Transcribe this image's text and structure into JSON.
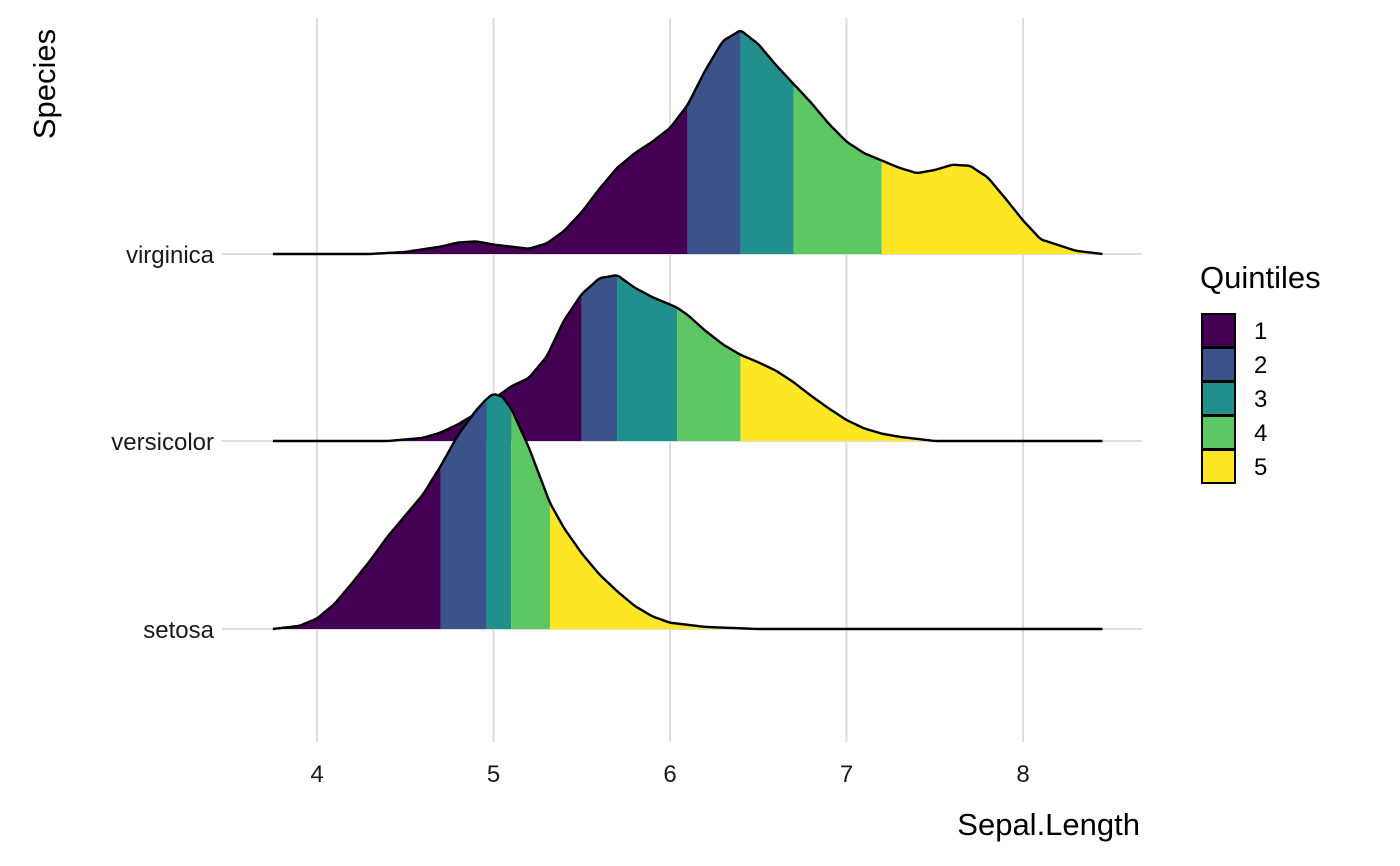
{
  "chart_data": {
    "type": "ridgeline",
    "xlabel": "Sepal.Length",
    "ylabel": "Species",
    "xlim": [
      3.75,
      8.45
    ],
    "x_ticks": [
      4,
      5,
      6,
      7,
      8
    ],
    "categories": [
      "setosa",
      "versicolor",
      "virginica"
    ],
    "grid": "on",
    "legend": {
      "title": "Quintiles",
      "position": "right",
      "items": [
        {
          "label": "1",
          "color": "#440154"
        },
        {
          "label": "2",
          "color": "#3B528B"
        },
        {
          "label": "3",
          "color": "#21908C"
        },
        {
          "label": "4",
          "color": "#5DC863"
        },
        {
          "label": "5",
          "color": "#FDE725"
        }
      ]
    },
    "series": [
      {
        "category": "setosa",
        "quintile_breaks": [
          4.7,
          4.96,
          5.1,
          5.32
        ],
        "density_x": [
          3.75,
          3.9,
          4.0,
          4.1,
          4.2,
          4.3,
          4.4,
          4.5,
          4.6,
          4.7,
          4.8,
          4.9,
          4.96,
          5.0,
          5.05,
          5.1,
          5.2,
          5.32,
          5.4,
          5.5,
          5.6,
          5.7,
          5.8,
          5.9,
          6.0,
          6.2,
          6.5,
          8.45
        ],
        "density_y": [
          0.0,
          0.03,
          0.1,
          0.24,
          0.44,
          0.65,
          0.88,
          1.08,
          1.28,
          1.55,
          1.85,
          2.08,
          2.19,
          2.24,
          2.21,
          2.1,
          1.73,
          1.2,
          0.96,
          0.72,
          0.52,
          0.36,
          0.22,
          0.12,
          0.06,
          0.02,
          0.0,
          0.0
        ]
      },
      {
        "category": "versicolor",
        "quintile_breaks": [
          5.5,
          5.7,
          6.04,
          6.4
        ],
        "density_x": [
          3.75,
          4.4,
          4.6,
          4.7,
          4.8,
          4.9,
          5.0,
          5.1,
          5.2,
          5.3,
          5.4,
          5.5,
          5.6,
          5.7,
          5.8,
          5.9,
          6.0,
          6.04,
          6.1,
          6.2,
          6.3,
          6.4,
          6.5,
          6.6,
          6.7,
          6.8,
          6.9,
          7.0,
          7.1,
          7.2,
          7.3,
          7.4,
          7.5,
          8.45
        ],
        "density_y": [
          0.0,
          0.0,
          0.03,
          0.08,
          0.16,
          0.26,
          0.4,
          0.52,
          0.6,
          0.8,
          1.15,
          1.4,
          1.55,
          1.58,
          1.46,
          1.37,
          1.3,
          1.27,
          1.2,
          1.05,
          0.92,
          0.82,
          0.75,
          0.67,
          0.56,
          0.43,
          0.31,
          0.2,
          0.12,
          0.07,
          0.04,
          0.02,
          0.0,
          0.0
        ]
      },
      {
        "category": "virginica",
        "quintile_breaks": [
          6.1,
          6.4,
          6.7,
          7.2
        ],
        "density_x": [
          3.75,
          4.3,
          4.5,
          4.7,
          4.8,
          4.9,
          5.0,
          5.2,
          5.3,
          5.4,
          5.5,
          5.6,
          5.7,
          5.8,
          5.9,
          6.0,
          6.1,
          6.2,
          6.3,
          6.4,
          6.5,
          6.6,
          6.7,
          6.8,
          6.9,
          7.0,
          7.1,
          7.2,
          7.3,
          7.4,
          7.5,
          7.6,
          7.7,
          7.8,
          7.9,
          8.0,
          8.1,
          8.3,
          8.45
        ],
        "density_y": [
          0.0,
          0.0,
          0.02,
          0.07,
          0.11,
          0.12,
          0.09,
          0.05,
          0.1,
          0.22,
          0.4,
          0.62,
          0.82,
          0.96,
          1.07,
          1.2,
          1.42,
          1.75,
          2.03,
          2.13,
          2.0,
          1.8,
          1.62,
          1.44,
          1.24,
          1.07,
          0.96,
          0.89,
          0.82,
          0.77,
          0.8,
          0.85,
          0.84,
          0.73,
          0.53,
          0.32,
          0.14,
          0.03,
          0.0
        ]
      }
    ]
  }
}
